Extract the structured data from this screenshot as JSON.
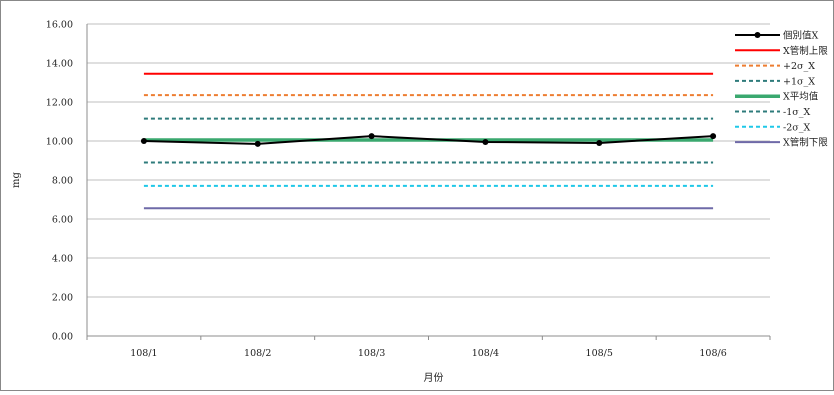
{
  "chart_data": {
    "type": "line",
    "title": "",
    "xlabel": "月份",
    "ylabel": "mg",
    "categories": [
      "108/1",
      "108/2",
      "108/3",
      "108/4",
      "108/5",
      "108/6"
    ],
    "ylim": [
      0,
      16
    ],
    "yticks": [
      "0.00",
      "2.00",
      "4.00",
      "6.00",
      "8.00",
      "10.00",
      "12.00",
      "14.00",
      "16.00"
    ],
    "grid": true,
    "legend_position": "right",
    "series": [
      {
        "name": "個別值X",
        "values": [
          10.0,
          9.85,
          10.25,
          9.95,
          9.9,
          10.25
        ],
        "color": "#000000",
        "style": "solid-markers"
      },
      {
        "name": "X管制上限",
        "values": [
          13.45,
          13.45,
          13.45,
          13.45,
          13.45,
          13.45
        ],
        "color": "#ff0000",
        "style": "solid"
      },
      {
        "name": "+2σ_X",
        "values": [
          12.35,
          12.35,
          12.35,
          12.35,
          12.35,
          12.35
        ],
        "color": "#ed7d31",
        "style": "dashed"
      },
      {
        "name": "+1σ_X",
        "values": [
          11.15,
          11.15,
          11.15,
          11.15,
          11.15,
          11.15
        ],
        "color": "#2e7b7b",
        "style": "dashed"
      },
      {
        "name": "X平均值",
        "values": [
          10.05,
          10.05,
          10.05,
          10.05,
          10.05,
          10.05
        ],
        "color": "#3aa86f",
        "style": "solid-thick"
      },
      {
        "name": "-1σ_X",
        "values": [
          8.9,
          8.9,
          8.9,
          8.9,
          8.9,
          8.9
        ],
        "color": "#2e7b7b",
        "style": "dashed"
      },
      {
        "name": "-2σ_X",
        "values": [
          7.7,
          7.7,
          7.7,
          7.7,
          7.7,
          7.7
        ],
        "color": "#1fc8e8",
        "style": "dashed"
      },
      {
        "name": "X管制下限",
        "values": [
          6.55,
          6.55,
          6.55,
          6.55,
          6.55,
          6.55
        ],
        "color": "#6f6aa8",
        "style": "solid"
      }
    ]
  }
}
